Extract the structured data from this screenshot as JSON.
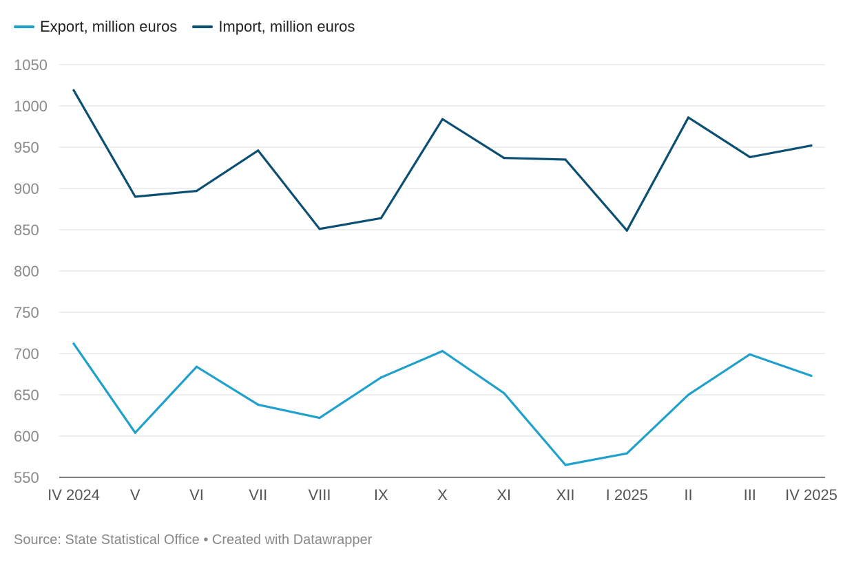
{
  "legend": {
    "export_label": "Export, million euros",
    "import_label": "Import, million euros"
  },
  "footer": {
    "source": "Source: State Statistical Office",
    "separator": "•",
    "credit": "Created with Datawrapper"
  },
  "colors": {
    "export": "#1fa1cc",
    "import": "#0b4f72",
    "grid": "#dddddd",
    "baseline": "#333333"
  },
  "chart_data": {
    "type": "line",
    "categories": [
      "IV 2024",
      "V",
      "VI",
      "VII",
      "VIII",
      "IX",
      "X",
      "XI",
      "XII",
      "I 2025",
      "II",
      "III",
      "IV 2025"
    ],
    "series": [
      {
        "name": "Export, million euros",
        "key": "export",
        "values": [
          712,
          604,
          684,
          638,
          622,
          671,
          703,
          652,
          565,
          579,
          650,
          699,
          673
        ]
      },
      {
        "name": "Import, million euros",
        "key": "import",
        "values": [
          1019,
          890,
          897,
          946,
          851,
          864,
          984,
          937,
          935,
          849,
          986,
          938,
          952
        ]
      }
    ],
    "yticks": [
      550,
      600,
      650,
      700,
      750,
      800,
      850,
      900,
      950,
      1000,
      1050
    ],
    "ylim": [
      550,
      1050
    ],
    "xlabel": "",
    "ylabel": "",
    "grid": true,
    "legend_position": "top-left"
  }
}
